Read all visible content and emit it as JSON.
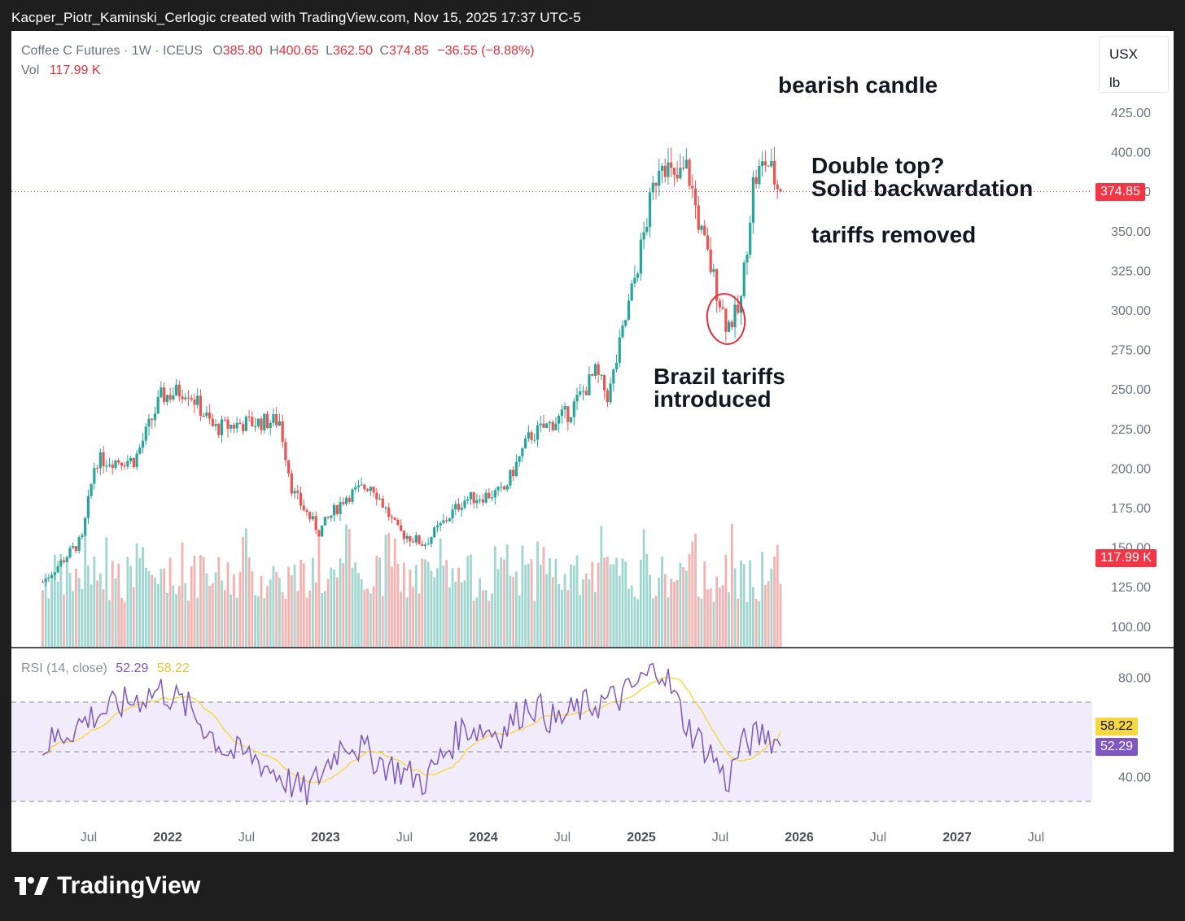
{
  "header": "Kacper_Piotr_Kaminski_Cerlogic created with TradingView.com, Nov 15, 2025 17:37 UTC-5",
  "legend": {
    "symbol": "Coffee C Futures · 1W · ICEUS",
    "o_label": "O",
    "o_value": "385.80",
    "h_label": "H",
    "h_value": "400.65",
    "l_label": "L",
    "l_value": "362.50",
    "c_label": "C",
    "c_value": "374.85",
    "change": "−36.55 (−8.88%)",
    "vol_label": "Vol",
    "vol_value": "117.99 K"
  },
  "units": {
    "currency": "USX",
    "unit": "lb"
  },
  "rsi_legend": {
    "label": "RSI (14, close)",
    "rsi_value": "52.29",
    "ma_value": "58.22"
  },
  "annotations": {
    "bearish": "bearish candle",
    "double_top": "Double top?",
    "backwardation": "Solid backwardation",
    "tariffs_removed": "tariffs removed",
    "brazil_1": "Brazil tariffs",
    "brazil_2": "introduced"
  },
  "tags": {
    "price": "374.85",
    "volume": "117.99 K",
    "rsi_ma": "58.22",
    "rsi": "52.29"
  },
  "brand": "TradingView",
  "colors": {
    "up": "#26a69a",
    "down": "#ef5350",
    "rsi": "#7e57c2",
    "rsi_ma": "#f5d742",
    "band": "#f1ecfb",
    "tag_red": "#f23645",
    "tag_purple": "#7e57c2",
    "tag_yellow": "#f5d742"
  },
  "chart_data": {
    "type": "candlestick",
    "price_axis": {
      "ticks": [
        "425.00",
        "400.00",
        "375.00",
        "350.00",
        "325.00",
        "300.00",
        "275.00",
        "250.00",
        "225.00",
        "200.00",
        "175.00",
        "150.00",
        "125.00",
        "100.00"
      ]
    },
    "rsi_axis": {
      "ticks": [
        "80.00",
        "40.00"
      ],
      "upper_band": 70,
      "middle": 50,
      "lower_band": 30
    },
    "time_axis": {
      "ticks": [
        "Jul",
        "2022",
        "Jul",
        "2023",
        "Jul",
        "2024",
        "Jul",
        "2025",
        "Jul",
        "2026",
        "Jul",
        "2027",
        "Jul"
      ]
    },
    "last_close": 374.85,
    "anchor_closes": [
      {
        "period": "2021-03",
        "close": 128
      },
      {
        "period": "2021-06",
        "close": 155
      },
      {
        "period": "2021-07",
        "close": 205
      },
      {
        "period": "2021-10",
        "close": 205
      },
      {
        "period": "2021-12",
        "close": 245
      },
      {
        "period": "2022-02",
        "close": 250
      },
      {
        "period": "2022-04",
        "close": 225
      },
      {
        "period": "2022-06",
        "close": 228
      },
      {
        "period": "2022-09",
        "close": 230
      },
      {
        "period": "2022-10",
        "close": 185
      },
      {
        "period": "2022-12",
        "close": 160
      },
      {
        "period": "2023-02",
        "close": 182
      },
      {
        "period": "2023-04",
        "close": 190
      },
      {
        "period": "2023-06",
        "close": 160
      },
      {
        "period": "2023-08",
        "close": 152
      },
      {
        "period": "2023-11",
        "close": 180
      },
      {
        "period": "2024-02",
        "close": 185
      },
      {
        "period": "2024-04",
        "close": 220
      },
      {
        "period": "2024-07",
        "close": 235
      },
      {
        "period": "2024-09",
        "close": 260
      },
      {
        "period": "2024-10",
        "close": 245
      },
      {
        "period": "2024-12",
        "close": 320
      },
      {
        "period": "2025-02",
        "close": 400
      },
      {
        "period": "2025-03",
        "close": 380
      },
      {
        "period": "2025-04",
        "close": 390
      },
      {
        "period": "2025-05",
        "close": 350
      },
      {
        "period": "2025-07",
        "close": 290
      },
      {
        "period": "2025-08",
        "close": 300
      },
      {
        "period": "2025-09",
        "close": 380
      },
      {
        "period": "2025-10",
        "close": 395
      },
      {
        "period": "2025-11",
        "close": 374.85
      }
    ],
    "rsi_anchors": [
      {
        "period": "2021-03",
        "rsi": 52
      },
      {
        "period": "2021-07",
        "rsi": 65
      },
      {
        "period": "2021-12",
        "rsi": 75
      },
      {
        "period": "2022-02",
        "rsi": 68
      },
      {
        "period": "2022-05",
        "rsi": 50
      },
      {
        "period": "2022-07",
        "rsi": 48
      },
      {
        "period": "2022-11",
        "rsi": 33
      },
      {
        "period": "2023-02",
        "rsi": 55
      },
      {
        "period": "2023-05",
        "rsi": 45
      },
      {
        "period": "2023-08",
        "rsi": 38
      },
      {
        "period": "2023-11",
        "rsi": 60
      },
      {
        "period": "2024-02",
        "rsi": 58
      },
      {
        "period": "2024-04",
        "rsi": 70
      },
      {
        "period": "2024-06",
        "rsi": 62
      },
      {
        "period": "2024-08",
        "rsi": 68
      },
      {
        "period": "2024-11",
        "rsi": 72
      },
      {
        "period": "2025-02",
        "rsi": 85
      },
      {
        "period": "2025-04",
        "rsi": 60
      },
      {
        "period": "2025-06",
        "rsi": 48
      },
      {
        "period": "2025-07",
        "rsi": 37
      },
      {
        "period": "2025-08",
        "rsi": 52
      },
      {
        "period": "2025-10",
        "rsi": 58
      },
      {
        "period": "2025-11",
        "rsi": 52.29
      }
    ]
  }
}
